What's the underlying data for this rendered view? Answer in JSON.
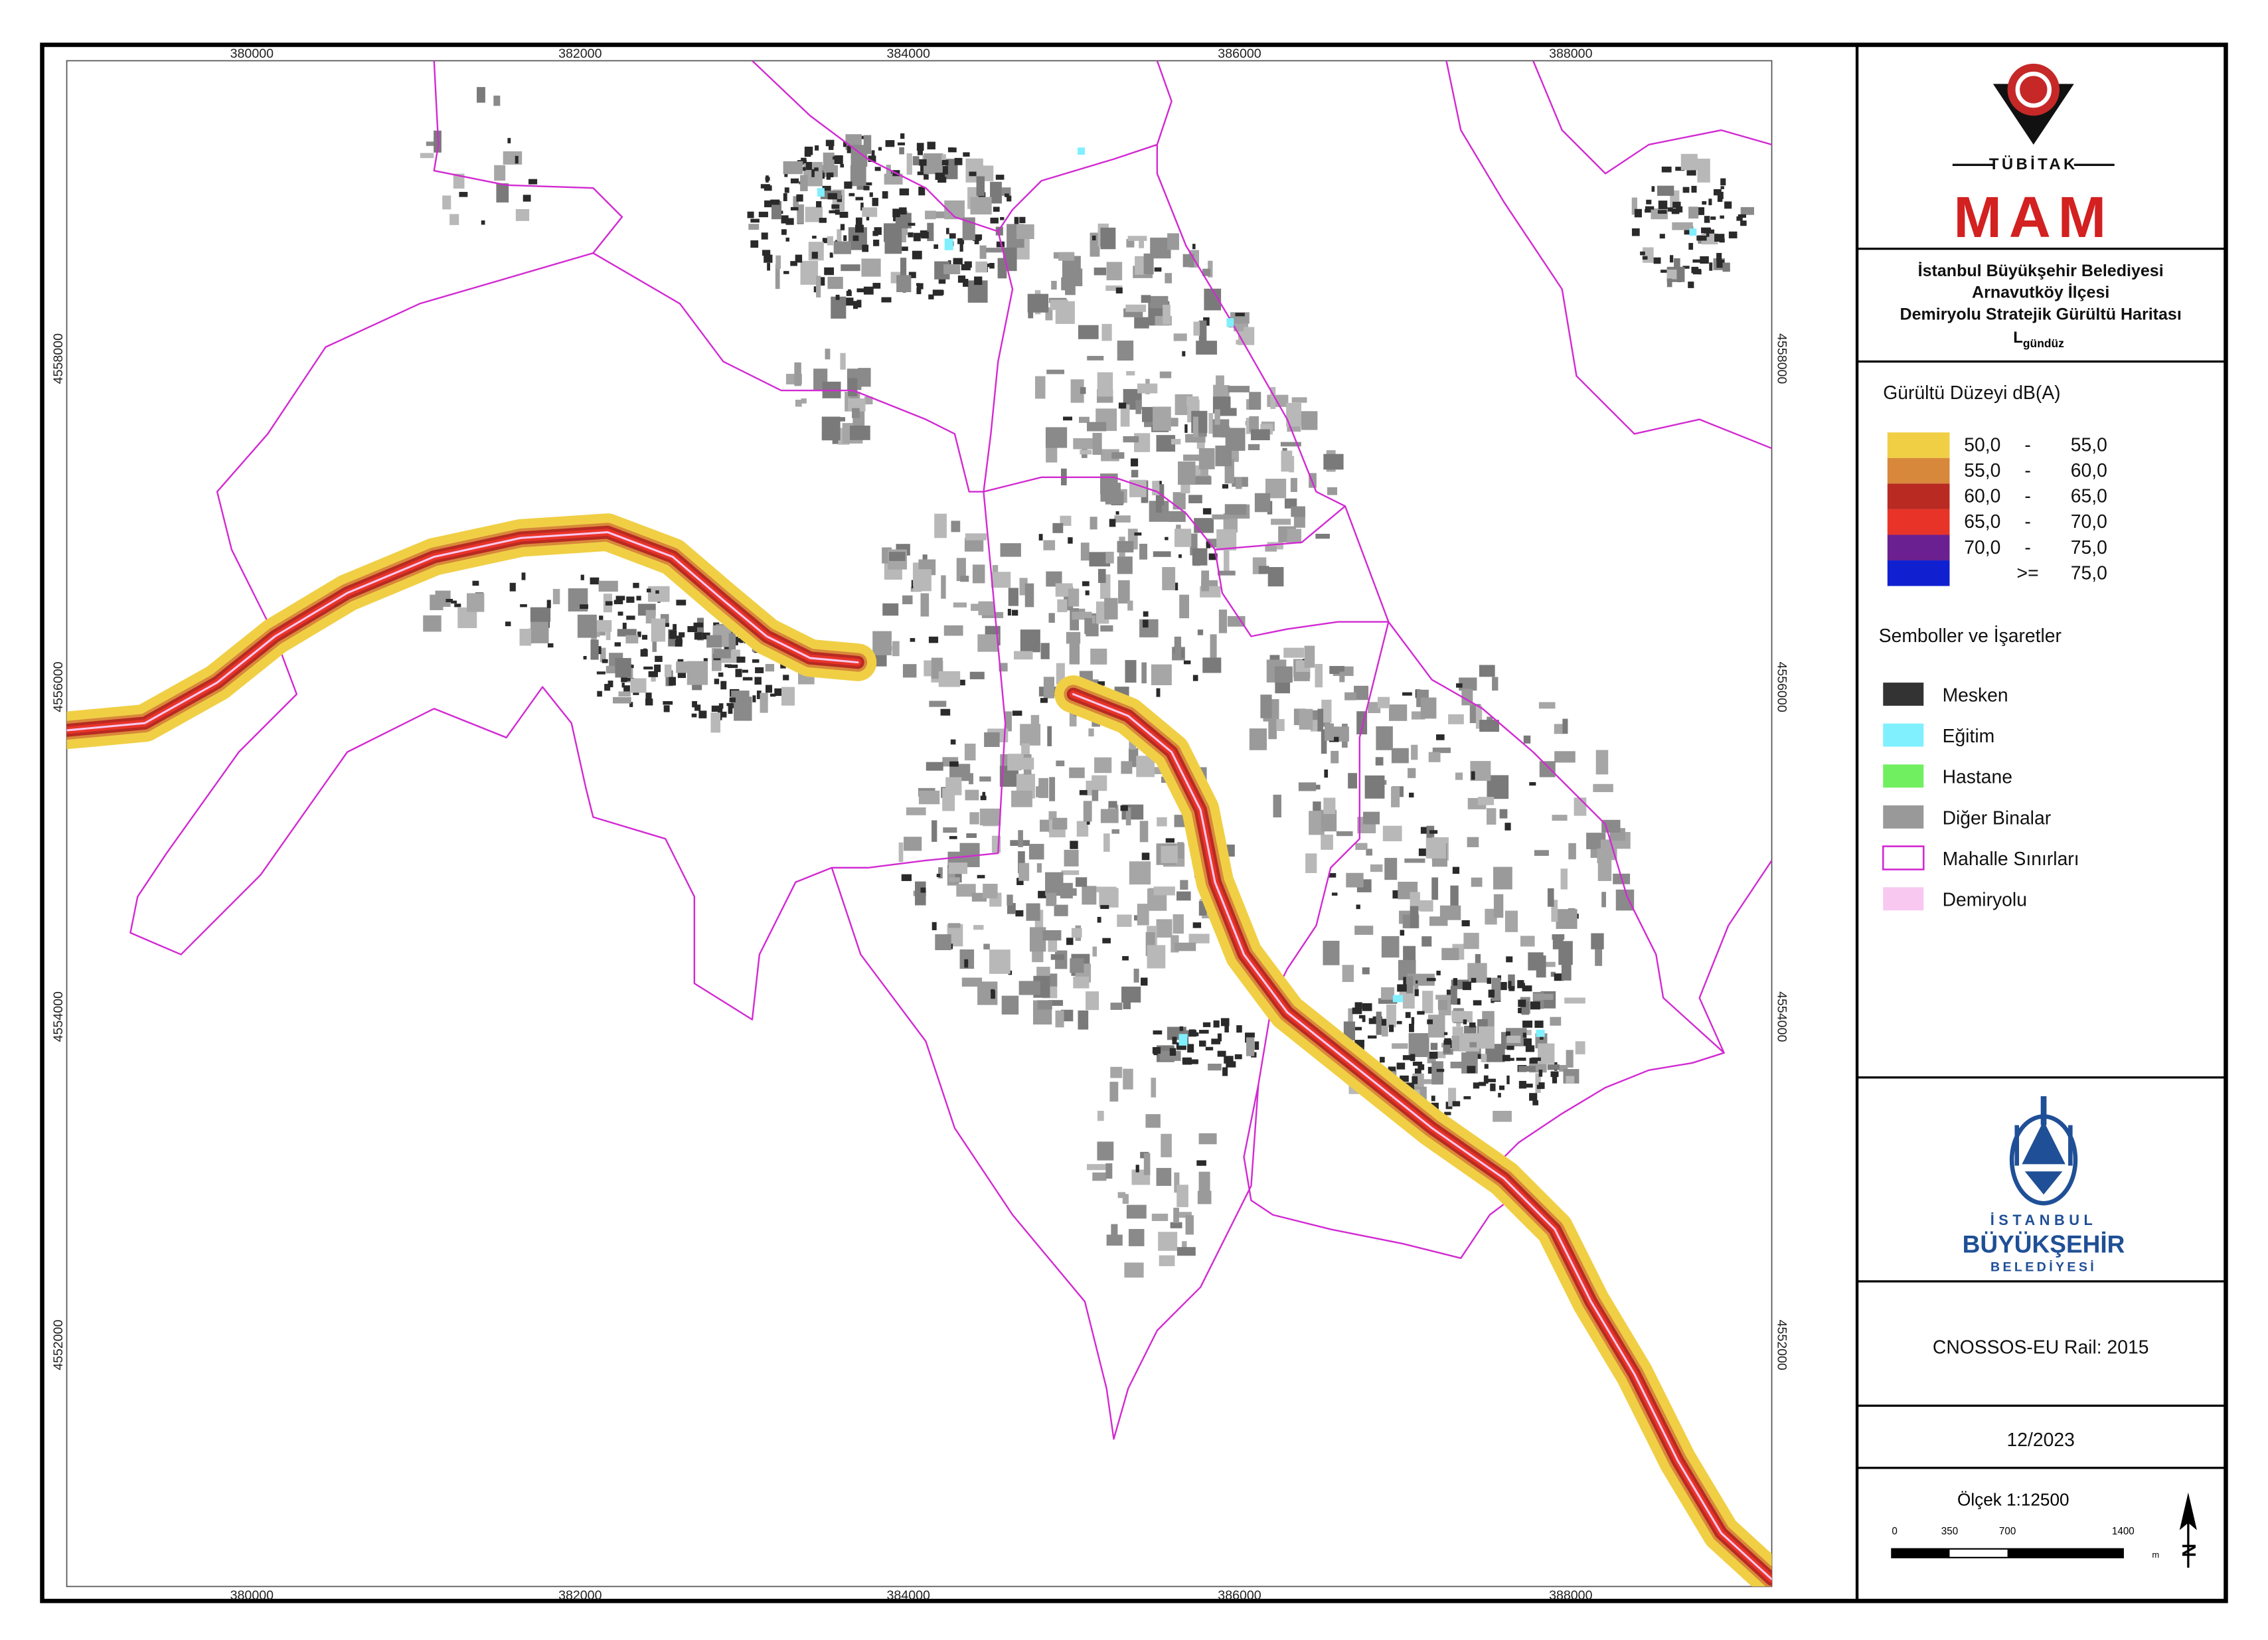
{
  "map": {
    "coordinates": {
      "top": [
        "380000",
        "382000",
        "384000",
        "386000",
        "388000"
      ],
      "bottom": [
        "380000",
        "382000",
        "384000",
        "386000",
        "388000"
      ],
      "left": [
        "4558000",
        "4556000",
        "4554000",
        "4552000"
      ],
      "right": [
        "4558000",
        "4556000",
        "4554000",
        "4552000"
      ]
    }
  },
  "logo_top": {
    "org": "TÜBİTAK",
    "unit": "MAM"
  },
  "title": {
    "lines": [
      "İstanbul Büyükşehir Belediyesi",
      "Arnavutköy İlçesi",
      "Demiryolu Stratejik Gürültü Haritası"
    ],
    "indicator": "L",
    "indicator_sub": "gündüz"
  },
  "legend": {
    "noise_title": "Gürültü Düzeyi dB(A)",
    "noise_classes": [
      {
        "low": "50,0",
        "sep": "-",
        "high": "55,0",
        "color": "#f0cf45"
      },
      {
        "low": "55,0",
        "sep": "-",
        "high": "60,0",
        "color": "#d8883a"
      },
      {
        "low": "60,0",
        "sep": "-",
        "high": "65,0",
        "color": "#b82a22"
      },
      {
        "low": "65,0",
        "sep": "-",
        "high": "70,0",
        "color": "#e83428"
      },
      {
        "low": "70,0",
        "sep": "-",
        "high": "75,0",
        "color": "#6a2090"
      },
      {
        "sep": ">=",
        "high": "75,0",
        "color": "#1020d0"
      }
    ],
    "symbols_title": "Semboller ve İşaretler",
    "symbols": [
      {
        "label": "Mesken",
        "color": "#333333"
      },
      {
        "label": "Eğitim",
        "color": "#80f0ff"
      },
      {
        "label": "Hastane",
        "color": "#70f060"
      },
      {
        "label": "Diğer Binalar",
        "color": "#999999"
      },
      {
        "label": "Mahalle Sınırları",
        "color": "#d22ad2",
        "outline": true
      },
      {
        "label": "Demiryolu",
        "color": "#f8c8f0"
      }
    ]
  },
  "logo_bottom": {
    "lines": [
      "İSTANBUL",
      "BÜYÜKŞEHİR",
      "BELEDİYESİ"
    ]
  },
  "model": "CNOSSOS-EU Rail: 2015",
  "date": "12/2023",
  "scale": {
    "title": "Ölçek 1:12500",
    "ticks": [
      "0",
      "350",
      "700",
      "1400"
    ],
    "unit": "m",
    "north": "N"
  }
}
